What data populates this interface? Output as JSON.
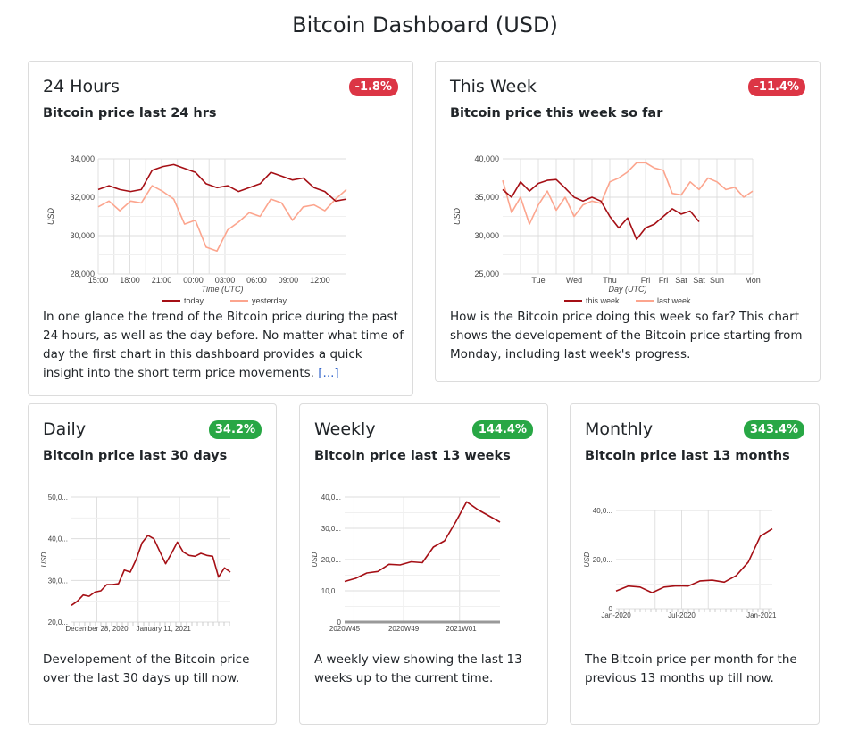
{
  "title": "Bitcoin Dashboard (USD)",
  "colors": {
    "up": "#28a745",
    "down": "#dc3545",
    "series_main": "#a50f15",
    "series_prev": "#fca58e"
  },
  "cards": [
    {
      "title": "24 Hours",
      "badge": "-1.8%",
      "badge_type": "down",
      "subtitle": "Bitcoin price last 24 hrs",
      "description": "In one glance the trend of the Bitcoin price during the past 24 hours, as well as the day before. No matter what time of day the first chart in this dashboard provides a quick insight into the short term price movements.",
      "more_link": "[...]"
    },
    {
      "title": "This Week",
      "badge": "-11.4%",
      "badge_type": "down",
      "subtitle": "Bitcoin price this week so far",
      "description": "How is the Bitcoin price doing this week so far? This chart shows the developement of the Bitcoin price starting from Monday, including last week's progress."
    },
    {
      "title": "Daily",
      "badge": "34.2%",
      "badge_type": "up",
      "subtitle": "Bitcoin price last 30 days",
      "description": "Developement of the Bitcoin price over the last 30 days up till now."
    },
    {
      "title": "Weekly",
      "badge": "144.4%",
      "badge_type": "up",
      "subtitle": "Bitcoin price last 13 weeks",
      "description": "A weekly view showing the last 13 weeks up to the current time."
    },
    {
      "title": "Monthly",
      "badge": "343.4%",
      "badge_type": "up",
      "subtitle": "Bitcoin price last 13 months",
      "description": "The Bitcoin price per month for the previous 13 months up till now."
    }
  ],
  "chart_data": [
    {
      "type": "line",
      "xlabel": "Time (UTC)",
      "ylabel": "USD",
      "ylim": [
        28000,
        34000
      ],
      "yticks": [
        "28,000",
        "30,000",
        "32,000",
        "34,000"
      ],
      "xticks": [
        "15:00",
        "18:00",
        "21:00",
        "00:00",
        "03:00",
        "06:00",
        "09:00",
        "12:00"
      ],
      "legend": "bottom",
      "series": [
        {
          "name": "today",
          "values": [
            32400,
            32600,
            32400,
            32300,
            32400,
            33400,
            33600,
            33700,
            33500,
            33300,
            32700,
            32500,
            32600,
            32300,
            32500,
            32700,
            33300,
            33100,
            32900,
            33000,
            32500,
            32300,
            31800,
            31900
          ]
        },
        {
          "name": "yesterday",
          "values": [
            31500,
            31800,
            31300,
            31800,
            31700,
            32600,
            32300,
            31900,
            30600,
            30800,
            29400,
            29200,
            30300,
            30700,
            31200,
            31000,
            31900,
            31700,
            30800,
            31500,
            31600,
            31300,
            31900,
            32400
          ]
        }
      ]
    },
    {
      "type": "line",
      "xlabel": "Day (UTC)",
      "ylabel": "USD",
      "ylim": [
        25000,
        40000
      ],
      "yticks": [
        "25,000",
        "30,000",
        "35,000",
        "40,000"
      ],
      "xticks": [
        "Tue",
        "Wed",
        "Thu",
        "Fri",
        "Fri",
        "Sat",
        "Sat",
        "Sun",
        "Mon"
      ],
      "legend": "bottom",
      "series": [
        {
          "name": "this week",
          "values": [
            36000,
            35000,
            37000,
            35800,
            36800,
            37200,
            37300,
            36200,
            35000,
            34500,
            35000,
            34500,
            32500,
            31000,
            32300,
            29500,
            31000,
            31500,
            32500,
            33500,
            32800,
            33200,
            31800
          ]
        },
        {
          "name": "last week",
          "values": [
            37200,
            33000,
            35000,
            31500,
            34000,
            35800,
            33300,
            35000,
            32500,
            34000,
            34500,
            34200,
            37000,
            37500,
            38300,
            39500,
            39500,
            38800,
            38500,
            35500,
            35300,
            37000,
            36000,
            37500,
            37000,
            36000,
            36300,
            35000,
            35800
          ]
        }
      ]
    },
    {
      "type": "line",
      "ylabel": "USD",
      "ylim": [
        20000,
        50000
      ],
      "yticks": [
        "20,0...",
        "30,0...",
        "40,0...",
        "50,0..."
      ],
      "xticks": [
        "December 28, 2020",
        "January 11, 2021"
      ],
      "series": [
        {
          "values": [
            24000,
            25000,
            26500,
            26200,
            27200,
            27500,
            29000,
            29000,
            29200,
            32500,
            32000,
            35000,
            39000,
            40800,
            40000,
            37000,
            34000,
            36500,
            39200,
            36800,
            36000,
            35800,
            36500,
            36000,
            35800,
            30800,
            33000,
            32000
          ]
        }
      ]
    },
    {
      "type": "line",
      "ylabel": "USD",
      "ylim": [
        0,
        40000
      ],
      "yticks": [
        "0",
        "10,0...",
        "20,0...",
        "30,0...",
        "40,0..."
      ],
      "xticks": [
        "2020W45",
        "2020W49",
        "2021W01"
      ],
      "series": [
        {
          "values": [
            13000,
            14000,
            15700,
            16200,
            18500,
            18300,
            19300,
            19000,
            24000,
            26000,
            32000,
            38500,
            36000,
            34000,
            32000
          ]
        }
      ]
    },
    {
      "type": "line",
      "ylabel": "USD",
      "ylim": [
        0,
        40000
      ],
      "yticks": [
        "0",
        "20,0...",
        "40,0..."
      ],
      "xticks": [
        "Jan-2020",
        "Jul-2020",
        "Jan-2021"
      ],
      "series": [
        {
          "values": [
            7200,
            9200,
            8800,
            6500,
            8800,
            9300,
            9200,
            11300,
            11600,
            10800,
            13500,
            19000,
            29500,
            32500
          ]
        }
      ]
    }
  ]
}
